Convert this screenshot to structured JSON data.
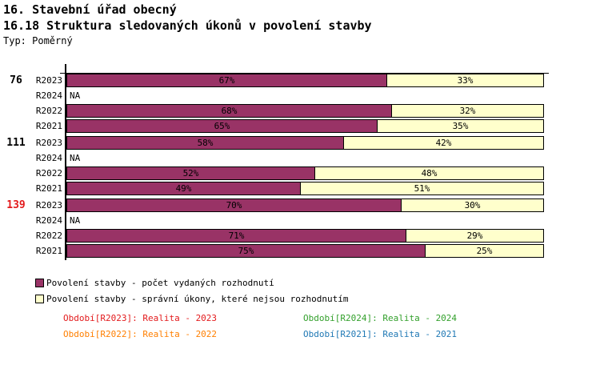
{
  "header": {
    "title_line1": "16. Stavební úřad obecný",
    "title_line2": "16.18 Struktura sledovaných úkonů v povolení stavby",
    "type_label": "Typ: Poměrný"
  },
  "na_label": "NA",
  "colors": {
    "series1": "#993366",
    "series2": "#ffffcc",
    "bar_border": "#000000",
    "group_label_default": "#000000",
    "group_label_highlight": "#e31a1c",
    "period_r2023": "#e31a1c",
    "period_r2024": "#33a02c",
    "period_r2022": "#ff7f00",
    "period_r2021": "#1f78b4"
  },
  "chart_data": {
    "type": "bar",
    "orientation": "horizontal",
    "stacked": true,
    "unit": "%",
    "xlim": [
      0,
      100
    ],
    "grid": false,
    "series_names": [
      "Povolení stavby - počet vydaných rozhodnutí",
      "Povolení stavby - správní úkony, které nejsou rozhodnutím"
    ],
    "groups": [
      {
        "label": "76",
        "label_color": "#000000",
        "rows": [
          {
            "period": "R2023",
            "values": [
              67,
              33
            ],
            "labels": [
              "67%",
              "33%"
            ]
          },
          {
            "period": "R2024",
            "values": null,
            "na": true
          },
          {
            "period": "R2022",
            "values": [
              68,
              32
            ],
            "labels": [
              "68%",
              "32%"
            ]
          },
          {
            "period": "R2021",
            "values": [
              65,
              35
            ],
            "labels": [
              "65%",
              "35%"
            ]
          }
        ]
      },
      {
        "label": "111",
        "label_color": "#000000",
        "rows": [
          {
            "period": "R2023",
            "values": [
              58,
              42
            ],
            "labels": [
              "58%",
              "42%"
            ]
          },
          {
            "period": "R2024",
            "values": null,
            "na": true
          },
          {
            "period": "R2022",
            "values": [
              52,
              48
            ],
            "labels": [
              "52%",
              "48%"
            ]
          },
          {
            "period": "R2021",
            "values": [
              49,
              51
            ],
            "labels": [
              "49%",
              "51%"
            ]
          }
        ]
      },
      {
        "label": "139",
        "label_color": "#e31a1c",
        "rows": [
          {
            "period": "R2023",
            "values": [
              70,
              30
            ],
            "labels": [
              "70%",
              "30%"
            ]
          },
          {
            "period": "R2024",
            "values": null,
            "na": true
          },
          {
            "period": "R2022",
            "values": [
              71,
              29
            ],
            "labels": [
              "71%",
              "29%"
            ]
          },
          {
            "period": "R2021",
            "values": [
              75,
              25
            ],
            "labels": [
              "75%",
              "25%"
            ]
          }
        ]
      }
    ]
  },
  "series_legend": [
    {
      "label": "Povolení stavby - počet vydaných rozhodnutí",
      "color": "#993366"
    },
    {
      "label": "Povolení stavby - správní úkony, které nejsou rozhodnutím",
      "color": "#ffffcc"
    }
  ],
  "period_legend": [
    {
      "label": "Období[R2023]: Realita - 2023",
      "color": "#e31a1c",
      "row": 0,
      "col": 0
    },
    {
      "label": "Období[R2024]: Realita - 2024",
      "color": "#33a02c",
      "row": 0,
      "col": 1
    },
    {
      "label": "Období[R2022]: Realita - 2022",
      "color": "#ff7f00",
      "row": 1,
      "col": 0
    },
    {
      "label": "Období[R2021]: Realita - 2021",
      "color": "#1f78b4",
      "row": 1,
      "col": 1
    }
  ]
}
